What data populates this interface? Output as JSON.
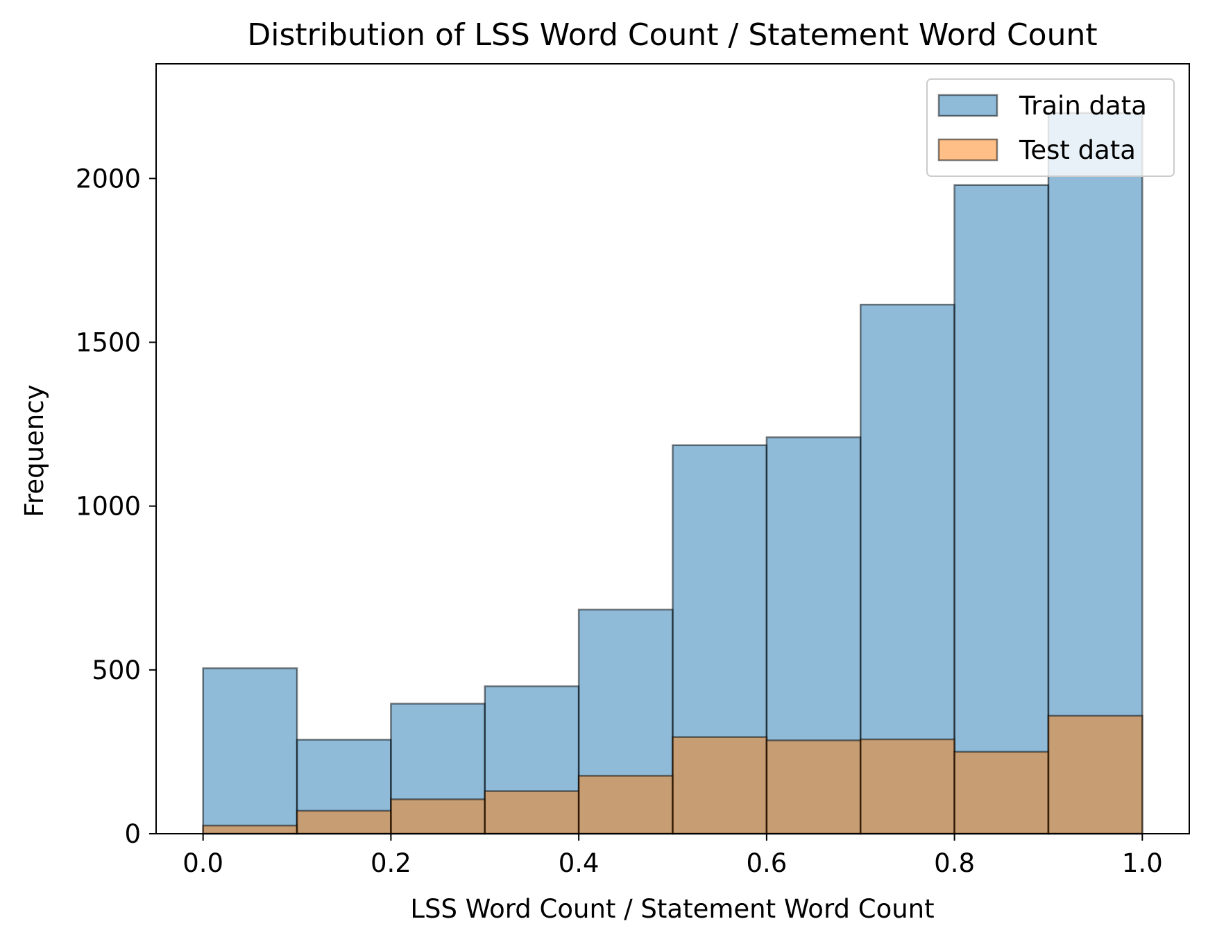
{
  "chart_data": {
    "type": "histogram",
    "title": "Distribution of LSS Word Count / Statement Word Count",
    "xlabel": "LSS Word Count / Statement Word Count",
    "ylabel": "Frequency",
    "xlim": [
      -0.05,
      1.05
    ],
    "ylim": [
      0,
      2350
    ],
    "bin_edges": [
      0.0,
      0.1,
      0.2,
      0.3,
      0.4,
      0.5,
      0.6,
      0.7,
      0.8,
      0.9,
      1.0
    ],
    "x_ticks": [
      0.0,
      0.2,
      0.4,
      0.6,
      0.8,
      1.0
    ],
    "x_tick_labels": [
      "0.0",
      "0.2",
      "0.4",
      "0.6",
      "0.8",
      "1.0"
    ],
    "y_ticks": [
      0,
      500,
      1000,
      1500,
      2000
    ],
    "y_tick_labels": [
      "0",
      "500",
      "1000",
      "1500",
      "2000"
    ],
    "legend_position": "top-right",
    "series": [
      {
        "name": "Train data",
        "color": "#1f77b4",
        "alpha": 0.5,
        "values": [
          505,
          287,
          397,
          450,
          684,
          1186,
          1210,
          1615,
          1980,
          2200
        ]
      },
      {
        "name": "Test data",
        "color": "#ff7f0e",
        "alpha": 0.5,
        "values": [
          25,
          70,
          105,
          130,
          177,
          295,
          285,
          288,
          250,
          360
        ]
      }
    ]
  }
}
